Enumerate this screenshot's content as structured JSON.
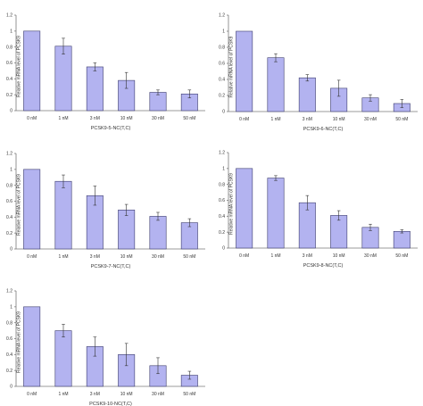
{
  "colors": {
    "bar_fill": "#b3b3f0",
    "bar_stroke": "#3c3c6e",
    "axis": "#7a7a7a",
    "error_bar": "#333333"
  },
  "chart_data": [
    {
      "type": "bar",
      "categories": [
        "0 nM",
        "1 nM",
        "3 nM",
        "10 nM",
        "30 nM",
        "50 nM"
      ],
      "values": [
        1.0,
        0.81,
        0.55,
        0.38,
        0.23,
        0.21
      ],
      "errors": [
        0.0,
        0.1,
        0.05,
        0.1,
        0.03,
        0.05
      ],
      "xlabel": "PCSK9-5-NC(T,C)",
      "ylabel": "Relative mRNA level of PCSK9",
      "ylim": [
        0,
        1.2
      ],
      "yticks": [
        "0",
        "0.2",
        "0.4",
        "0.6",
        "0.8",
        "1",
        "1.2"
      ],
      "grid": false
    },
    {
      "type": "bar",
      "categories": [
        "0 nM",
        "1 nM",
        "3 nM",
        "10 nM",
        "30 nM",
        "50 nM"
      ],
      "values": [
        1.0,
        0.67,
        0.42,
        0.29,
        0.17,
        0.1
      ],
      "errors": [
        0.0,
        0.05,
        0.04,
        0.1,
        0.04,
        0.05
      ],
      "xlabel": "PCSK9-6-NC(T,C)",
      "ylabel": "Relative mRNA level of PCSK9",
      "ylim": [
        0,
        1.2
      ],
      "yticks": [
        "0",
        "0.2",
        "0.4",
        "0.6",
        "0.8",
        "1",
        "1.2"
      ],
      "grid": false
    },
    {
      "type": "bar",
      "categories": [
        "0 nM",
        "1 nM",
        "3 nM",
        "10 nM",
        "30 nM",
        "50 nM"
      ],
      "values": [
        1.0,
        0.85,
        0.67,
        0.49,
        0.41,
        0.33
      ],
      "errors": [
        0.0,
        0.08,
        0.12,
        0.07,
        0.05,
        0.05
      ],
      "xlabel": "PCSK9-7-NC(T,C)",
      "ylabel": "Relative mRNA level of PCSK9",
      "ylim": [
        0,
        1.2
      ],
      "yticks": [
        "0",
        "0.2",
        "0.4",
        "0.6",
        "0.8",
        "1",
        "1.2"
      ],
      "grid": false
    },
    {
      "type": "bar",
      "categories": [
        "0 nM",
        "1 nM",
        "3 nM",
        "10 nM",
        "30 nM",
        "50 nM"
      ],
      "values": [
        1.0,
        0.88,
        0.57,
        0.41,
        0.26,
        0.21
      ],
      "errors": [
        0.0,
        0.03,
        0.09,
        0.06,
        0.04,
        0.02
      ],
      "xlabel": "PCSK9-8-NC(T,C)",
      "ylabel": "Relative mRNA level of PCSK9",
      "ylim": [
        0,
        1.2
      ],
      "yticks": [
        "0",
        "0.2",
        "0.4",
        "0.6",
        "0.8",
        "1",
        "1.2"
      ],
      "grid": false
    },
    {
      "type": "bar",
      "categories": [
        "0 nM",
        "1 nM",
        "3 nM",
        "10 nM",
        "30 nM",
        "50 nM"
      ],
      "values": [
        1.0,
        0.7,
        0.5,
        0.4,
        0.26,
        0.14
      ],
      "errors": [
        0.0,
        0.08,
        0.12,
        0.14,
        0.1,
        0.05
      ],
      "xlabel": "PCSK9-10-NC(T,C)",
      "ylabel": "Relative mRNA level of PCSK9",
      "ylim": [
        0,
        1.2
      ],
      "yticks": [
        "0",
        "0.2",
        "0.4",
        "0.6",
        "0.8",
        "1",
        "1.2"
      ],
      "grid": false
    }
  ]
}
